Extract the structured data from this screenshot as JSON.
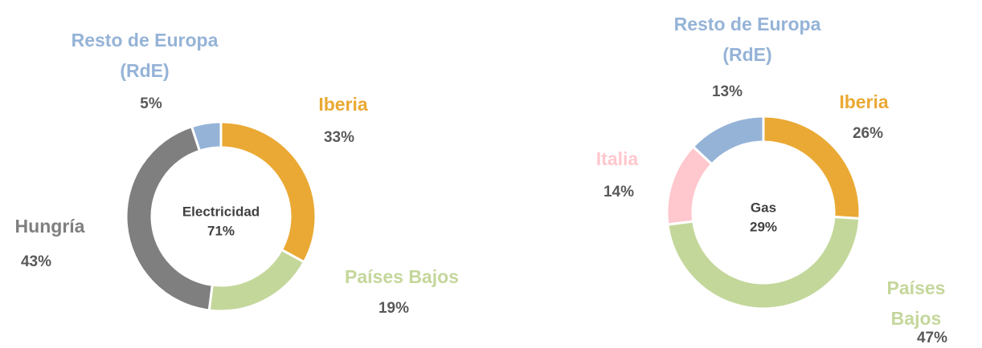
{
  "chart_data": [
    {
      "type": "donut",
      "center_title": "Electricidad",
      "center_value": 71,
      "center_value_label": "71%",
      "categories": [
        "Iberia",
        "Países Bajos",
        "Hungría",
        "Resto de Europa (RdE)"
      ],
      "values": [
        33,
        19,
        43,
        5
      ],
      "value_labels": [
        "33%",
        "19%",
        "43%",
        "5%"
      ],
      "colors": [
        "#eaa934",
        "#c4d79b",
        "#7f7f7f",
        "#95b3d7"
      ]
    },
    {
      "type": "donut",
      "center_title": "Gas",
      "center_value": 29,
      "center_value_label": "29%",
      "categories": [
        "Iberia",
        "Países Bajos",
        "Italia",
        "Resto de Europa (RdE)"
      ],
      "values": [
        26,
        47,
        14,
        13
      ],
      "value_labels": [
        "26%",
        "47%",
        "14%",
        "13%"
      ],
      "colors": [
        "#eaa934",
        "#c4d79b",
        "#ffc7ce",
        "#95b3d7"
      ]
    }
  ]
}
